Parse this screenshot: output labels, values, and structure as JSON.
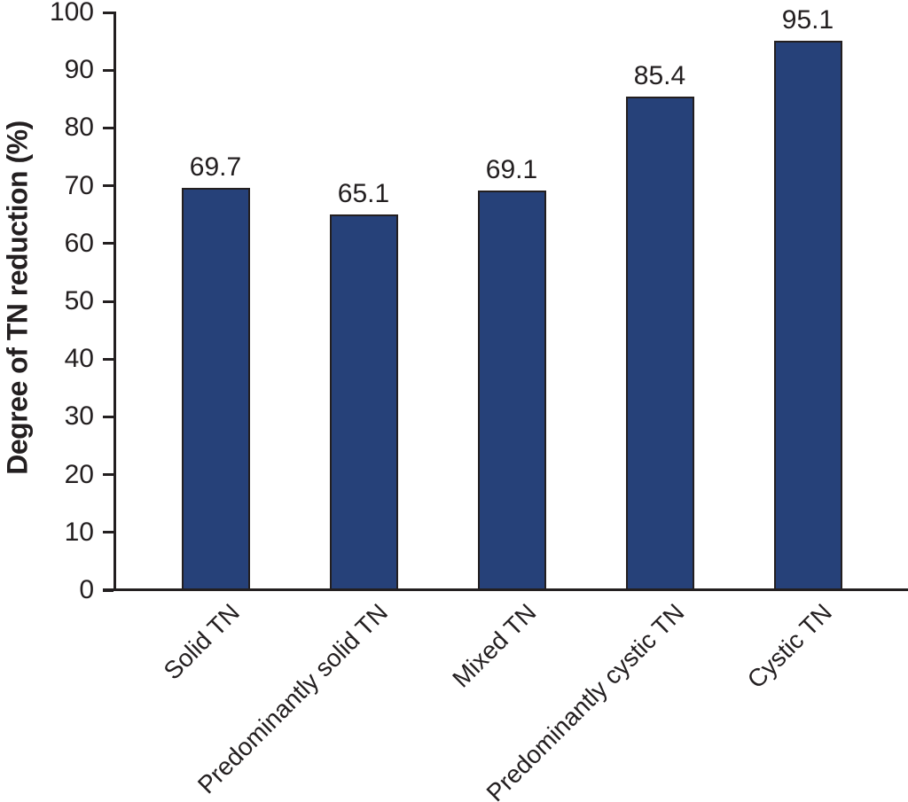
{
  "chart_data": {
    "type": "bar",
    "title": "",
    "xlabel": "",
    "ylabel": "Degree of TN reduction (%)",
    "categories": [
      "Solid TN",
      "Predominantly solid TN",
      "Mixed TN",
      "Predominantly cystic TN",
      "Cystic TN"
    ],
    "values": [
      69.7,
      65.1,
      69.1,
      85.4,
      95.1
    ],
    "value_labels": [
      "69.7",
      "65.1",
      "69.1",
      "85.4",
      "95.1"
    ],
    "ylim": [
      0,
      100
    ],
    "yticks": [
      0,
      10,
      20,
      30,
      40,
      50,
      60,
      70,
      80,
      90,
      100
    ],
    "grid": false,
    "legend": "none",
    "bar_color": "#264179",
    "bar_border_color": "#231f20",
    "axis_color": "#231f20",
    "text_color": "#231f20",
    "background_color": "#ffffff"
  }
}
